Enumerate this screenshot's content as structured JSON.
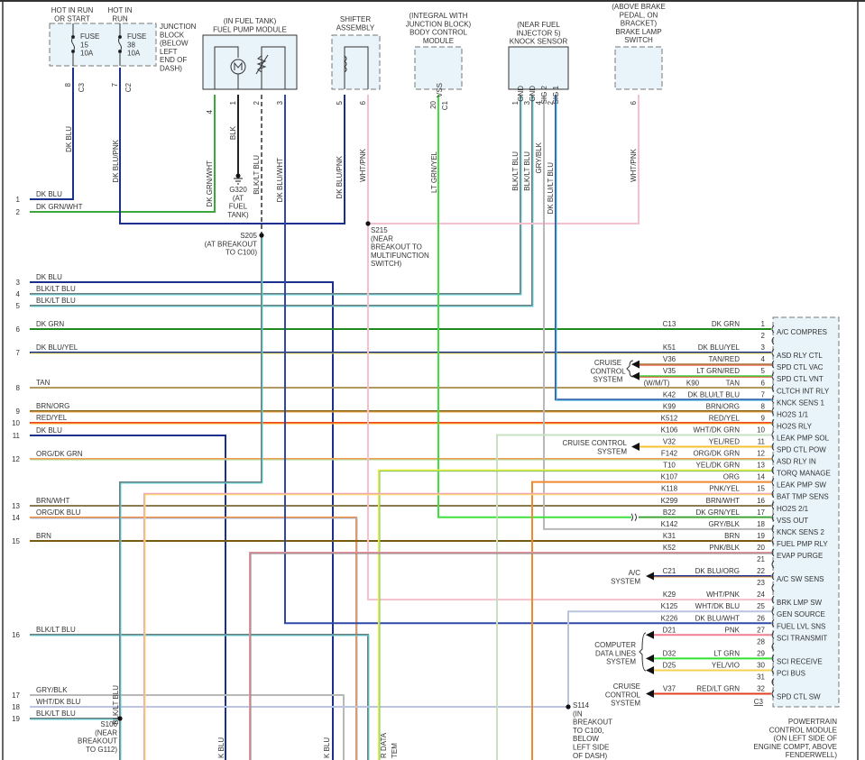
{
  "wire_colors": {
    "DK BLU": [
      "#1b2f8c"
    ],
    "DK GRN/WHT": [
      "#3aa83a"
    ],
    "DK BLU/PNK": [
      "#1b2f8c"
    ],
    "WHT/PNK": [
      "#f3c0cc"
    ],
    "BLK": [
      "#222222"
    ],
    "BLK/LT BLU": [
      "#6f7f7f",
      "#63d8e2"
    ],
    "DK BLU/WHT": [
      "#3048a8"
    ],
    "GRY/BLK": [
      "#b8b8b8"
    ],
    "DK BLU/LT BLU": [
      "#2a5aa8",
      "#63c0e8"
    ],
    "LT GRN/YEL": [
      "#40e040"
    ],
    "DK GRN/YEL": [
      "#2f9a2f",
      "#b8e0a0"
    ],
    "DK GRN": [
      "#1f8a1f"
    ],
    "DK BLU/YEL": [
      "#1b2f8c",
      "#f4e04a"
    ],
    "TAN/RED": [
      "#b08a50",
      "#e05030"
    ],
    "LT GRN/RED": [
      "#40d040",
      "#e05030"
    ],
    "TAN": [
      "#b09a60"
    ],
    "BRN/ORG": [
      "#8a6a20",
      "#f0a040"
    ],
    "RED/YEL": [
      "#f04020",
      "#f8c030"
    ],
    "WHT/DK GRN": [
      "#c8e0c0"
    ],
    "YEL/RED": [
      "#f8c030"
    ],
    "ORG/DK GRN": [
      "#f0a050",
      "#a8d8a0"
    ],
    "YEL/DK GRN": [
      "#e8f040",
      "#80c060"
    ],
    "ORG": [
      "#f08a30"
    ],
    "PNK/YEL": [
      "#f4a8b4",
      "#f8e060"
    ],
    "BRN/WHT": [
      "#8a7a50"
    ],
    "BRN": [
      "#7a5a10"
    ],
    "PNK/BLK": [
      "#e8909c",
      "#888888"
    ],
    "DK BLU/ORG": [
      "#1b2f8c",
      "#f0a040"
    ],
    "WHT/DK BLU": [
      "#b8c4e0"
    ],
    "PNK": [
      "#f08090"
    ],
    "LT GRN": [
      "#30e030"
    ],
    "YEL/VIO": [
      "#f8d050"
    ],
    "RED/LT GRN": [
      "#e04020"
    ],
    "ORG/DK BLU": [
      "#f09040",
      "#a0b8e0"
    ]
  },
  "left_wires": [
    {
      "num": "1",
      "label": "DK BLU"
    },
    {
      "num": "2",
      "label": "DK GRN/WHT"
    },
    {
      "num": "3",
      "label": "DK BLU"
    },
    {
      "num": "4",
      "label": "BLK/LT BLU"
    },
    {
      "num": "5",
      "label": "BLK/LT BLU"
    },
    {
      "num": "6",
      "label": "DK GRN"
    },
    {
      "num": "7",
      "label": "DK BLU/YEL"
    },
    {
      "num": "8",
      "label": "TAN"
    },
    {
      "num": "9",
      "label": "BRN/ORG"
    },
    {
      "num": "10",
      "label": "RED/YEL"
    },
    {
      "num": "11",
      "label": "DK BLU"
    },
    {
      "num": "12",
      "label": "ORG/DK GRN"
    },
    {
      "num": "13",
      "label": "BRN/WHT"
    },
    {
      "num": "14",
      "label": "ORG/DK BLU"
    },
    {
      "num": "15",
      "label": "BRN"
    },
    {
      "num": "16",
      "label": "BLK/LT BLU"
    },
    {
      "num": "17",
      "label": "GRY/BLK"
    },
    {
      "num": "18",
      "label": "WHT/DK BLU"
    },
    {
      "num": "19",
      "label": "BLK/LT BLU"
    }
  ],
  "pcm": {
    "connector": "C3",
    "title": [
      "POWERTRAIN",
      "CONTROL MODULE",
      "(ON LEFT SIDE OF",
      "ENGINE COMPT, ABOVE",
      "FENDERWELL)"
    ],
    "pins": [
      {
        "pin": "1",
        "circuit": "C13",
        "wire": "DK GRN",
        "function": "A/C COMPRES"
      },
      {
        "pin": "2",
        "circuit": "",
        "wire": "",
        "function": ""
      },
      {
        "pin": "3",
        "circuit": "K51",
        "wire": "DK BLU/YEL",
        "function": "ASD RLY CTL"
      },
      {
        "pin": "4",
        "circuit": "V36",
        "wire": "TAN/RED",
        "function": "SPD CTL VAC"
      },
      {
        "pin": "5",
        "circuit": "V35",
        "wire": "LT GRN/RED",
        "function": "SPD CTL VNT"
      },
      {
        "pin": "6",
        "circuit": "K90",
        "wire": "TAN",
        "function": "CLTCH INT RLY",
        "note": "(W/M/T)"
      },
      {
        "pin": "7",
        "circuit": "K42",
        "wire": "DK BLU/LT BLU",
        "function": "KNCK SENS 1"
      },
      {
        "pin": "8",
        "circuit": "K99",
        "wire": "BRN/ORG",
        "function": "HO2S 1/1"
      },
      {
        "pin": "9",
        "circuit": "K512",
        "wire": "RED/YEL",
        "function": "HO2S RLY"
      },
      {
        "pin": "10",
        "circuit": "K106",
        "wire": "WHT/DK GRN",
        "function": "LEAK PMP SOL"
      },
      {
        "pin": "11",
        "circuit": "V32",
        "wire": "YEL/RED",
        "function": "SPD CTL POW"
      },
      {
        "pin": "12",
        "circuit": "F142",
        "wire": "ORG/DK GRN",
        "function": "ASD RLY IN"
      },
      {
        "pin": "13",
        "circuit": "T10",
        "wire": "YEL/DK GRN",
        "function": "TORQ MANAGE"
      },
      {
        "pin": "14",
        "circuit": "K107",
        "wire": "ORG",
        "function": "LEAK PMP SW"
      },
      {
        "pin": "15",
        "circuit": "K118",
        "wire": "PNK/YEL",
        "function": "BAT TMP SENS"
      },
      {
        "pin": "16",
        "circuit": "K299",
        "wire": "BRN/WHT",
        "function": "HO2S 2/1"
      },
      {
        "pin": "17",
        "circuit": "B22",
        "wire": "DK GRN/YEL",
        "function": "VSS OUT"
      },
      {
        "pin": "18",
        "circuit": "K142",
        "wire": "GRY/BLK",
        "function": "KNCK SENS 2"
      },
      {
        "pin": "19",
        "circuit": "K31",
        "wire": "BRN",
        "function": "FUEL PMP RLY"
      },
      {
        "pin": "20",
        "circuit": "K52",
        "wire": "PNK/BLK",
        "function": "EVAP PURGE"
      },
      {
        "pin": "21",
        "circuit": "",
        "wire": "",
        "function": ""
      },
      {
        "pin": "22",
        "circuit": "C21",
        "wire": "DK BLU/ORG",
        "function": "A/C SW SENS"
      },
      {
        "pin": "23",
        "circuit": "",
        "wire": "",
        "function": ""
      },
      {
        "pin": "24",
        "circuit": "K29",
        "wire": "WHT/PNK",
        "function": "BRK LMP SW"
      },
      {
        "pin": "25",
        "circuit": "K125",
        "wire": "WHT/DK BLU",
        "function": "GEN SOURCE"
      },
      {
        "pin": "26",
        "circuit": "K226",
        "wire": "DK BLU/WHT",
        "function": "FUEL LVL SNS"
      },
      {
        "pin": "27",
        "circuit": "D21",
        "wire": "PNK",
        "function": "SCI TRANSMIT"
      },
      {
        "pin": "28",
        "circuit": "",
        "wire": "",
        "function": ""
      },
      {
        "pin": "29",
        "circuit": "D32",
        "wire": "LT GRN",
        "function": "SCI RECEIVE"
      },
      {
        "pin": "30",
        "circuit": "D25",
        "wire": "YEL/VIO",
        "function": "PCI BUS"
      },
      {
        "pin": "31",
        "circuit": "",
        "wire": "",
        "function": ""
      },
      {
        "pin": "32",
        "circuit": "V37",
        "wire": "RED/LT GRN",
        "function": "SPD CTL SW"
      }
    ]
  },
  "annotations": {
    "hot1": [
      "HOT IN RUN",
      "OR START"
    ],
    "hot2": [
      "HOT IN",
      "RUN"
    ],
    "fuse15": [
      "FUSE",
      "15",
      "10A"
    ],
    "fuse38": [
      "FUSE",
      "38",
      "10A"
    ],
    "junction": [
      "JUNCTION",
      "BLOCK",
      "(BELOW",
      "LEFT",
      "END OF",
      "DASH)"
    ],
    "fuelpump": [
      "(IN FUEL TANK)",
      "FUEL PUMP MODULE"
    ],
    "shifter": [
      "SHIFTER",
      "ASSEMBLY"
    ],
    "bcm": [
      "(INTEGRAL WITH",
      "JUNCTION BLOCK)",
      "BODY CONTROL",
      "MODULE"
    ],
    "knock": [
      "(NEAR FUEL",
      "INJECTOR 5)",
      "KNOCK SENSOR"
    ],
    "brake": [
      "(ABOVE BRAKE",
      "PEDAL, ON",
      "BRACKET)",
      "BRAKE LAMP",
      "SWITCH"
    ],
    "g320": [
      "G320",
      "(AT",
      "FUEL",
      "TANK)"
    ],
    "s205": [
      "S205",
      "(AT BREAKOUT",
      "TO C100)"
    ],
    "s215": [
      "S215",
      "(NEAR",
      "BREAKOUT TO",
      "MULTIFUNCTION",
      "SWITCH)"
    ],
    "s106": [
      "S106",
      "(NEAR",
      "BREAKOUT",
      "TO G112)"
    ],
    "s114": [
      "S114",
      "(IN",
      "BREAKOUT",
      "TO C100,",
      "BELOW",
      "LEFT SIDE",
      "OF DASH)"
    ],
    "cruise1": [
      "CRUISE",
      "CONTROL",
      "SYSTEM"
    ],
    "cruise2": [
      "CRUISE CONTROL",
      "SYSTEM"
    ],
    "ac": [
      "A/C",
      "SYSTEM"
    ],
    "cdl": [
      "COMPUTER",
      "DATA LINES",
      "SYSTEM"
    ],
    "cruise3": [
      "CRUISE",
      "CONTROL",
      "SYSTEM"
    ]
  },
  "vertical_labels": [
    "8",
    "C3",
    "7",
    "C2",
    "DK BLU",
    "DK BLU/PNK",
    "4",
    "1",
    "2",
    "3",
    "DK GRN/WHT",
    "BLK",
    "BLK/LT BLU",
    "DK BLU/WHT",
    "5",
    "6",
    "DK BLU/PNK",
    "WHT/PNK",
    "VSS",
    "20",
    "C1",
    "LT GRN/YEL",
    "GND",
    "GND",
    "SIG 2",
    "SIG 1",
    "1",
    "3",
    "4",
    "2",
    "BLK/LT BLU",
    "BLK/LT BLU",
    "GRY/BLK",
    "DK BLU/LT BLU",
    "6",
    "WHT/PNK",
    "BLK/LT BLU",
    "K BLU",
    "K BLU",
    "R DATA",
    "TEM"
  ]
}
